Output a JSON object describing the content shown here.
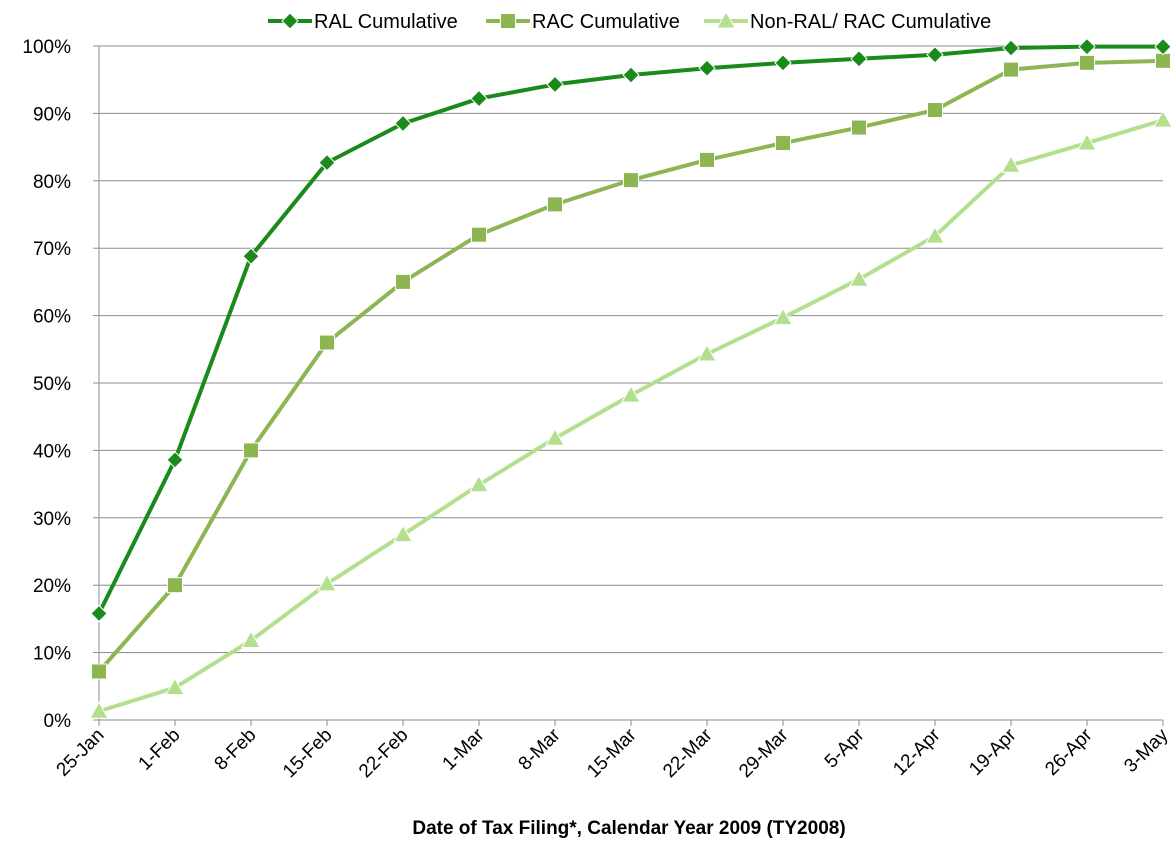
{
  "chart_data": {
    "type": "line",
    "xlabel": "Date of Tax Filing*, Calendar Year 2009 (TY2008)",
    "ylabel": "",
    "ylim": [
      0,
      1
    ],
    "yticks": [
      0,
      0.1,
      0.2,
      0.3,
      0.4,
      0.5,
      0.6,
      0.7,
      0.8,
      0.9,
      1.0
    ],
    "ytick_labels": [
      "0%",
      "10%",
      "20%",
      "30%",
      "40%",
      "50%",
      "60%",
      "70%",
      "80%",
      "90%",
      "100%"
    ],
    "grid": "horizontal",
    "legend_position": "top",
    "categories": [
      "25-Jan",
      "1-Feb",
      "8-Feb",
      "15-Feb",
      "22-Feb",
      "1-Mar",
      "8-Mar",
      "15-Mar",
      "22-Mar",
      "29-Mar",
      "5-Apr",
      "12-Apr",
      "19-Apr",
      "26-Apr",
      "3-May"
    ],
    "series": [
      {
        "name": "RAL Cumulative",
        "color": "#1a8a1a",
        "marker": "diamond",
        "values": [
          0.158,
          0.386,
          0.688,
          0.827,
          0.885,
          0.922,
          0.943,
          0.957,
          0.967,
          0.975,
          0.981,
          0.987,
          0.997,
          0.999,
          0.999
        ]
      },
      {
        "name": "RAC Cumulative",
        "color": "#8db552",
        "marker": "square",
        "values": [
          0.072,
          0.2,
          0.4,
          0.56,
          0.65,
          0.72,
          0.765,
          0.801,
          0.831,
          0.856,
          0.879,
          0.905,
          0.965,
          0.975,
          0.978
        ]
      },
      {
        "name": "Non-RAL/ RAC Cumulative",
        "color": "#b3df8f",
        "marker": "triangle",
        "values": [
          0.013,
          0.048,
          0.118,
          0.202,
          0.275,
          0.349,
          0.418,
          0.482,
          0.543,
          0.597,
          0.654,
          0.718,
          0.823,
          0.856,
          0.89
        ]
      }
    ]
  }
}
